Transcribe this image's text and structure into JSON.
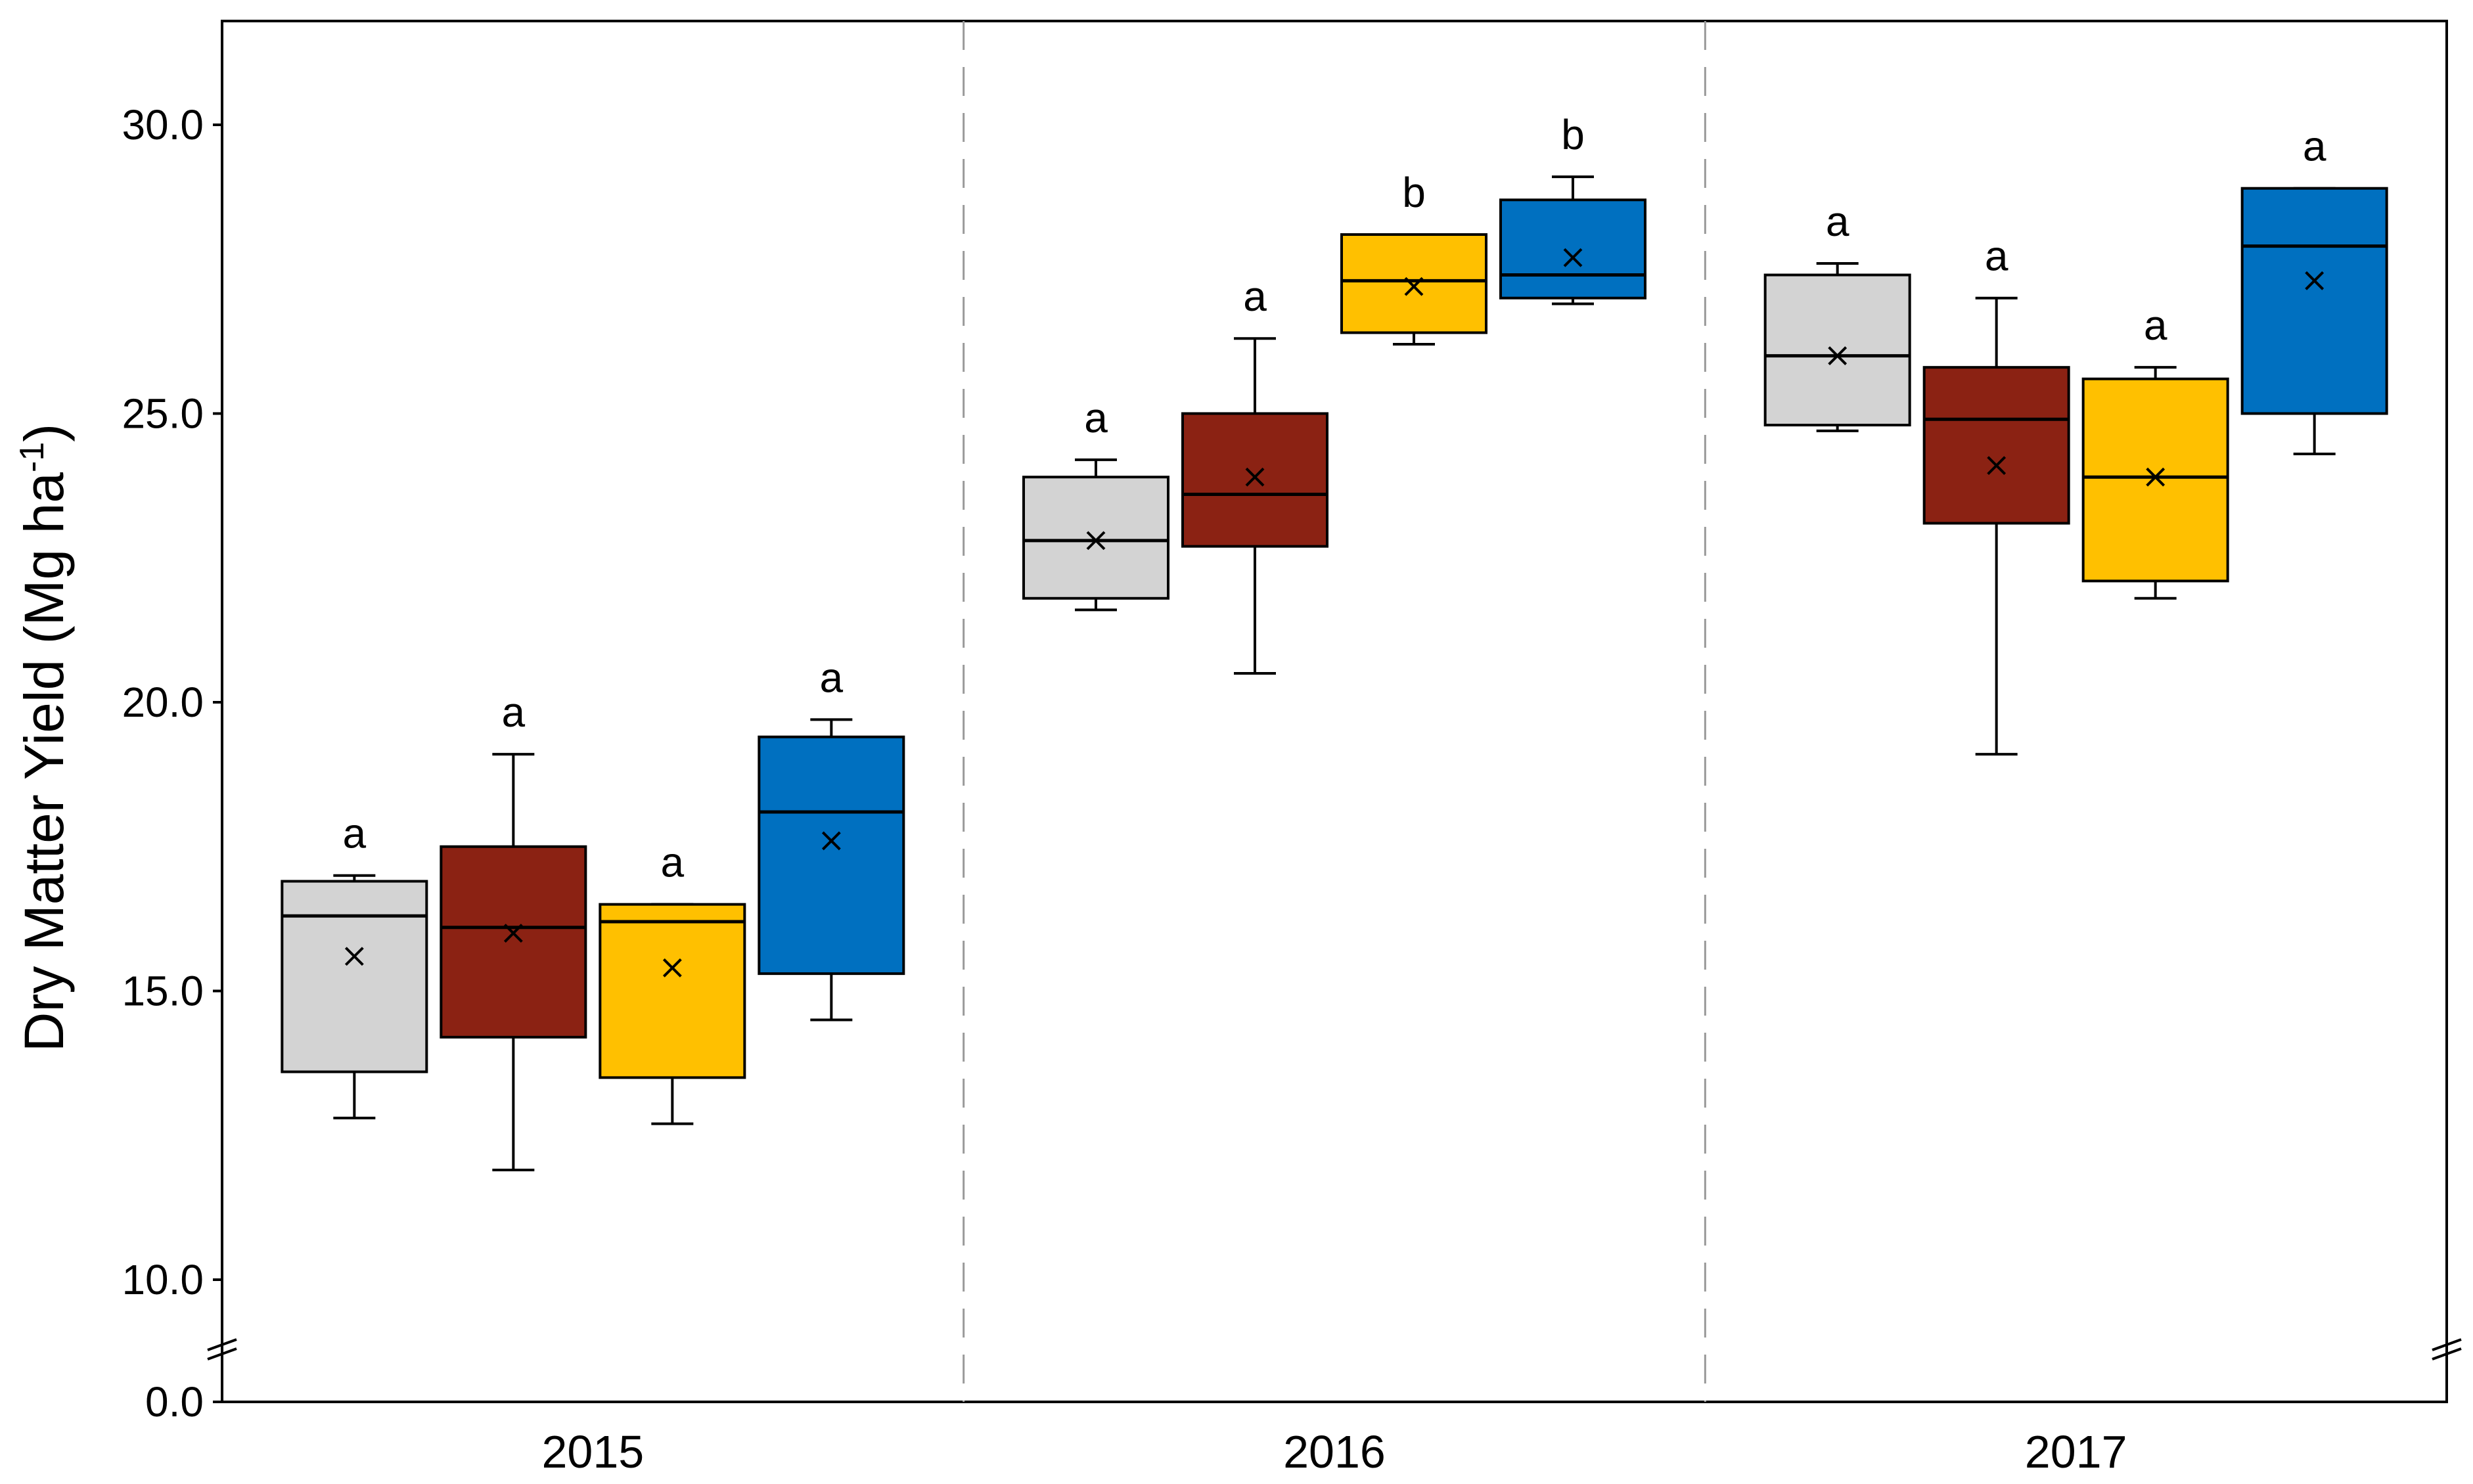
{
  "chart_data": {
    "type": "boxplot",
    "title": "",
    "xlabel": "",
    "ylabel": "Dry Matter Yield (Mg ha",
    "ylabel_sup": "-1",
    "ylabel_close": ")",
    "y_axis_break": true,
    "ylim": [
      0,
      31.8
    ],
    "y_ticks": [
      {
        "value": 0,
        "label": "0.0"
      },
      {
        "value": 10,
        "label": "10.0"
      },
      {
        "value": 15,
        "label": "15.0"
      },
      {
        "value": 20,
        "label": "20.0"
      },
      {
        "value": 25,
        "label": "25.0"
      },
      {
        "value": 30,
        "label": "30.0"
      }
    ],
    "categories": [
      "2015",
      "2016",
      "2017"
    ],
    "series_colors": [
      "#d3d3d3",
      "#8b2213",
      "#ffc000",
      "#0070c0"
    ],
    "groups": [
      {
        "year": "2015",
        "boxes": [
          {
            "whisker_low": 12.8,
            "q1": 13.6,
            "median": 16.3,
            "q3": 16.9,
            "whisker_high": 17.0,
            "mean": 15.6,
            "letter": "a"
          },
          {
            "whisker_low": 11.9,
            "q1": 14.2,
            "median": 16.1,
            "q3": 17.5,
            "whisker_high": 19.1,
            "mean": 16.0,
            "letter": "a"
          },
          {
            "whisker_low": 12.7,
            "q1": 13.5,
            "median": 16.2,
            "q3": 16.5,
            "whisker_high": 16.5,
            "mean": 15.4,
            "letter": "a"
          },
          {
            "whisker_low": 14.5,
            "q1": 15.3,
            "median": 18.1,
            "q3": 19.4,
            "whisker_high": 19.7,
            "mean": 17.6,
            "letter": "a"
          }
        ]
      },
      {
        "year": "2016",
        "boxes": [
          {
            "whisker_low": 21.6,
            "q1": 21.8,
            "median": 22.8,
            "q3": 23.9,
            "whisker_high": 24.2,
            "mean": 22.8,
            "letter": "a"
          },
          {
            "whisker_low": 20.5,
            "q1": 22.7,
            "median": 23.6,
            "q3": 25.0,
            "whisker_high": 26.3,
            "mean": 23.9,
            "letter": "a"
          },
          {
            "whisker_low": 26.2,
            "q1": 26.4,
            "median": 27.3,
            "q3": 28.1,
            "whisker_high": 28.1,
            "mean": 27.2,
            "letter": "b"
          },
          {
            "whisker_low": 26.9,
            "q1": 27.0,
            "median": 27.4,
            "q3": 28.7,
            "whisker_high": 29.1,
            "mean": 27.7,
            "letter": "b"
          }
        ]
      },
      {
        "year": "2017",
        "boxes": [
          {
            "whisker_low": 24.7,
            "q1": 24.8,
            "median": 26.0,
            "q3": 27.4,
            "whisker_high": 27.6,
            "mean": 26.0,
            "letter": "a"
          },
          {
            "whisker_low": 19.1,
            "q1": 23.1,
            "median": 24.9,
            "q3": 25.8,
            "whisker_high": 27.0,
            "mean": 24.1,
            "letter": "a"
          },
          {
            "whisker_low": 21.8,
            "q1": 22.1,
            "median": 23.9,
            "q3": 25.6,
            "whisker_high": 25.8,
            "mean": 23.9,
            "letter": "a"
          },
          {
            "whisker_low": 24.3,
            "q1": 25.0,
            "median": 27.9,
            "q3": 28.9,
            "whisker_high": 28.9,
            "mean": 27.3,
            "letter": "a"
          }
        ]
      }
    ]
  }
}
